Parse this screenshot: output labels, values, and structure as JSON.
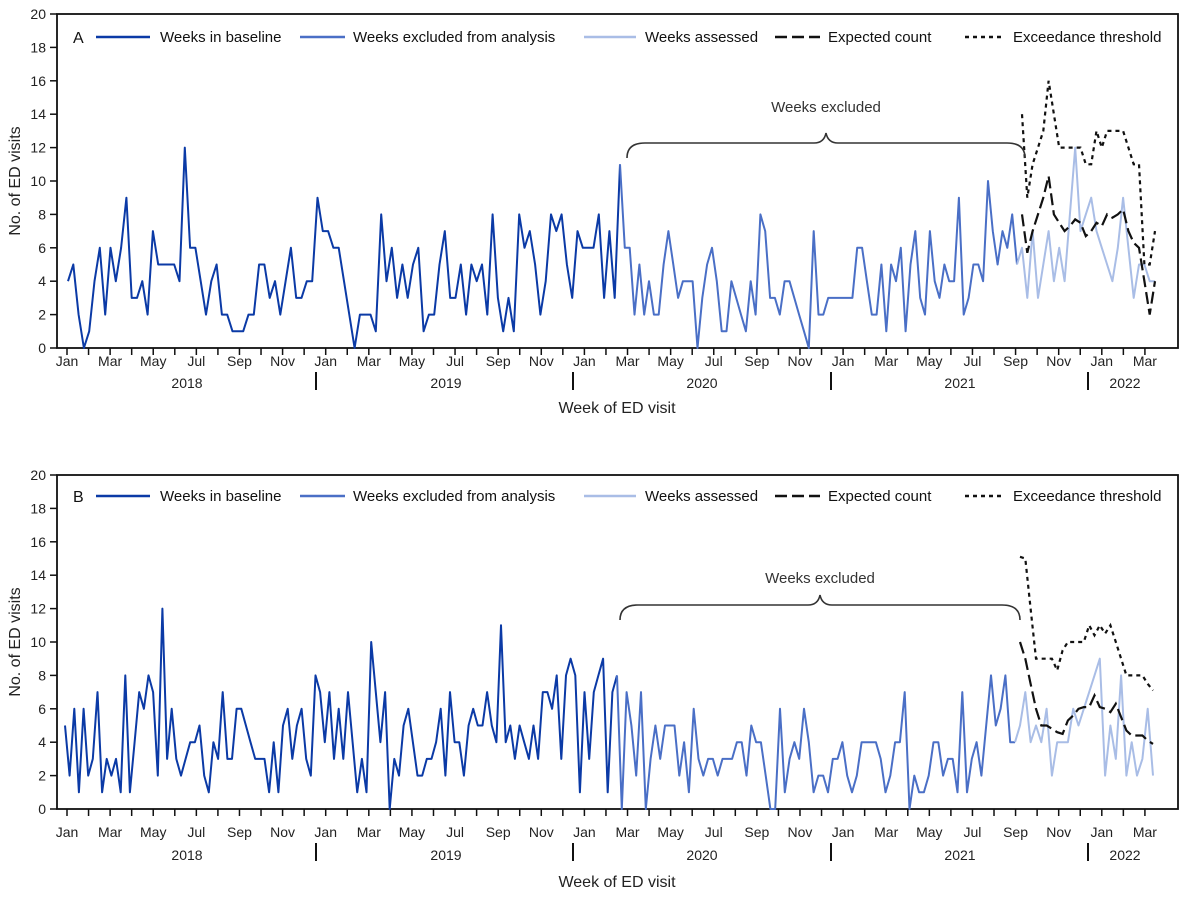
{
  "chart_data": [
    {
      "type": "line",
      "panel_label": "A",
      "ylabel": "No. of ED visits",
      "xlabel": "Week of ED visit",
      "ylim": [
        0,
        20
      ],
      "yticks": [
        0,
        2,
        4,
        6,
        8,
        10,
        12,
        14,
        16,
        18,
        20
      ],
      "x_month_labels": [
        "Jan",
        "Mar",
        "May",
        "Jul",
        "Sep",
        "Nov"
      ],
      "x_month_labels_2022": [
        "Jan",
        "Mar"
      ],
      "x_years": [
        "2018",
        "2019",
        "2020",
        "2021",
        "2022"
      ],
      "x_interval": "weekly",
      "annotation": "Weeks excluded",
      "legend": [
        "Weeks in baseline",
        "Weeks excluded from analysis",
        "Weeks assessed",
        "Expected count",
        "Exceedance threshold"
      ],
      "colors": {
        "baseline": "#0b3aa6",
        "excluded": "#4a6fc6",
        "assessed": "#a9bde6",
        "expected": "#111111",
        "threshold": "#111111"
      },
      "series": {
        "baseline": [
          4,
          5,
          2,
          0,
          1,
          4,
          6,
          2,
          6,
          4,
          6,
          9,
          3,
          3,
          4,
          2,
          7,
          5,
          5,
          5,
          5,
          4,
          12,
          6,
          6,
          4,
          2,
          4,
          5,
          2,
          2,
          1,
          1,
          1,
          2,
          2,
          5,
          5,
          3,
          4,
          2,
          4,
          6,
          3,
          3,
          4,
          4,
          9,
          7,
          7,
          6,
          6,
          4,
          2,
          0,
          2,
          2,
          2,
          1,
          8,
          4,
          6,
          3,
          5,
          3,
          5,
          6,
          1,
          2,
          2,
          5,
          7,
          3,
          3,
          5,
          2,
          5,
          4,
          5,
          2,
          8,
          3,
          1,
          3,
          1,
          8,
          6,
          7,
          5,
          2,
          4,
          8,
          7,
          8,
          5,
          3,
          7,
          6,
          6,
          6,
          8,
          3,
          7,
          3,
          11
        ],
        "excluded": [
          6,
          6,
          2,
          5,
          2,
          4,
          2,
          2,
          5,
          7,
          5,
          3,
          4,
          4,
          4,
          0,
          3,
          5,
          6,
          4,
          1,
          1,
          4,
          3,
          2,
          1,
          4,
          2,
          8,
          7,
          3,
          3,
          2,
          4,
          4,
          3,
          2,
          1,
          0,
          7,
          2,
          2,
          3,
          3,
          3,
          3,
          3,
          3,
          6,
          6,
          4,
          2,
          2,
          5,
          1,
          5,
          4,
          6,
          1,
          5,
          7,
          3,
          2,
          7,
          4,
          3,
          5,
          4,
          4,
          9,
          2,
          3,
          5,
          5,
          4,
          10,
          7,
          5,
          7,
          6,
          8,
          5
        ],
        "assessed": [
          6,
          3,
          7,
          3,
          5,
          7,
          4,
          6,
          4,
          8,
          12,
          7,
          8,
          9,
          7,
          6,
          5,
          4,
          6,
          9,
          6,
          3,
          5,
          5,
          4,
          4
        ],
        "expected": [
          8,
          5.7,
          7,
          8,
          9,
          10.3,
          8,
          7.5,
          7,
          7.3,
          7.7,
          7.5,
          6.7,
          7,
          7.5,
          7.3,
          8,
          7.8,
          8,
          8.3,
          7,
          6.3,
          6,
          4,
          2,
          4
        ],
        "threshold": [
          14,
          9,
          11,
          12,
          13,
          16,
          14,
          12,
          12,
          12,
          12,
          12,
          11,
          11,
          13,
          12,
          13,
          13,
          13,
          13,
          12,
          11,
          11,
          5,
          5,
          7
        ]
      }
    },
    {
      "type": "line",
      "panel_label": "B",
      "ylabel": "No. of ED visits",
      "xlabel": "Week of ED visit",
      "ylim": [
        0,
        20
      ],
      "yticks": [
        0,
        2,
        4,
        6,
        8,
        10,
        12,
        14,
        16,
        18,
        20
      ],
      "x_month_labels": [
        "Jan",
        "Mar",
        "May",
        "Jul",
        "Sep",
        "Nov"
      ],
      "x_month_labels_2022": [
        "Jan",
        "Mar"
      ],
      "x_years": [
        "2018",
        "2019",
        "2020",
        "2021",
        "2022"
      ],
      "x_interval": "weekly",
      "annotation": "Weeks excluded",
      "legend": [
        "Weeks in baseline",
        "Weeks excluded from analysis",
        "Weeks assessed",
        "Expected count",
        "Exceedance threshold"
      ],
      "colors": {
        "baseline": "#0b3aa6",
        "excluded": "#4a6fc6",
        "assessed": "#a9bde6",
        "expected": "#111111",
        "threshold": "#111111"
      },
      "series": {
        "baseline": [
          5,
          2,
          6,
          1,
          6,
          2,
          3,
          7,
          1,
          3,
          2,
          3,
          1,
          8,
          1,
          4,
          7,
          6,
          8,
          7,
          2,
          12,
          3,
          6,
          3,
          2,
          3,
          4,
          4,
          5,
          2,
          1,
          4,
          3,
          7,
          3,
          3,
          6,
          6,
          5,
          4,
          3,
          3,
          3,
          1,
          4,
          1,
          5,
          6,
          3,
          5,
          6,
          3,
          2,
          8,
          7,
          4,
          7,
          3,
          6,
          3,
          7,
          4,
          1,
          3,
          1,
          10,
          7,
          4,
          7,
          0,
          3,
          2,
          5,
          6,
          4,
          2,
          2,
          3,
          3,
          4,
          6,
          2,
          7,
          4,
          4,
          2,
          5,
          6,
          5,
          5,
          7,
          5,
          4,
          11,
          4,
          5,
          3,
          5,
          4,
          3,
          5,
          3,
          7,
          7,
          6,
          8,
          3,
          8,
          9,
          8,
          1,
          7,
          3,
          7,
          8,
          9,
          1,
          7,
          8
        ],
        "excluded": [
          0,
          7,
          5,
          2,
          7,
          0,
          3,
          5,
          3,
          5,
          5,
          5,
          2,
          4,
          1,
          6,
          3,
          2,
          3,
          3,
          2,
          3,
          3,
          3,
          4,
          4,
          2,
          5,
          4,
          4,
          2,
          0,
          0,
          6,
          1,
          3,
          4,
          3,
          6,
          4,
          1,
          2,
          2,
          1,
          3,
          3,
          4,
          2,
          1,
          2,
          4,
          4,
          4,
          4,
          3,
          1,
          2,
          4,
          4,
          7,
          0,
          2,
          1,
          1,
          2,
          4,
          4,
          2,
          3,
          3,
          1,
          7,
          1,
          3,
          4,
          2,
          5,
          8,
          5,
          6,
          8,
          4,
          4
        ],
        "assessed": [
          5,
          7,
          4,
          5,
          4,
          6,
          2,
          4,
          4,
          4,
          6,
          5,
          6,
          7,
          8,
          9,
          2,
          5,
          3,
          8,
          2,
          4,
          2,
          3,
          6,
          2
        ],
        "expected": [
          10,
          9,
          7.5,
          6,
          5,
          5,
          4.8,
          4.6,
          4.5,
          5.3,
          5.6,
          6,
          6.1,
          6.1,
          6.8,
          6.1,
          6,
          5.8,
          6.3,
          5.5,
          4.7,
          4.4,
          4.4,
          4.4,
          4.1,
          3.9
        ],
        "threshold": [
          15.1,
          15,
          12,
          9,
          9,
          9,
          9,
          8.3,
          9.5,
          10,
          10,
          10,
          10,
          11,
          10.4,
          11,
          10.5,
          11,
          10,
          9,
          8,
          8,
          8,
          8,
          7.5,
          7.1
        ]
      }
    }
  ]
}
